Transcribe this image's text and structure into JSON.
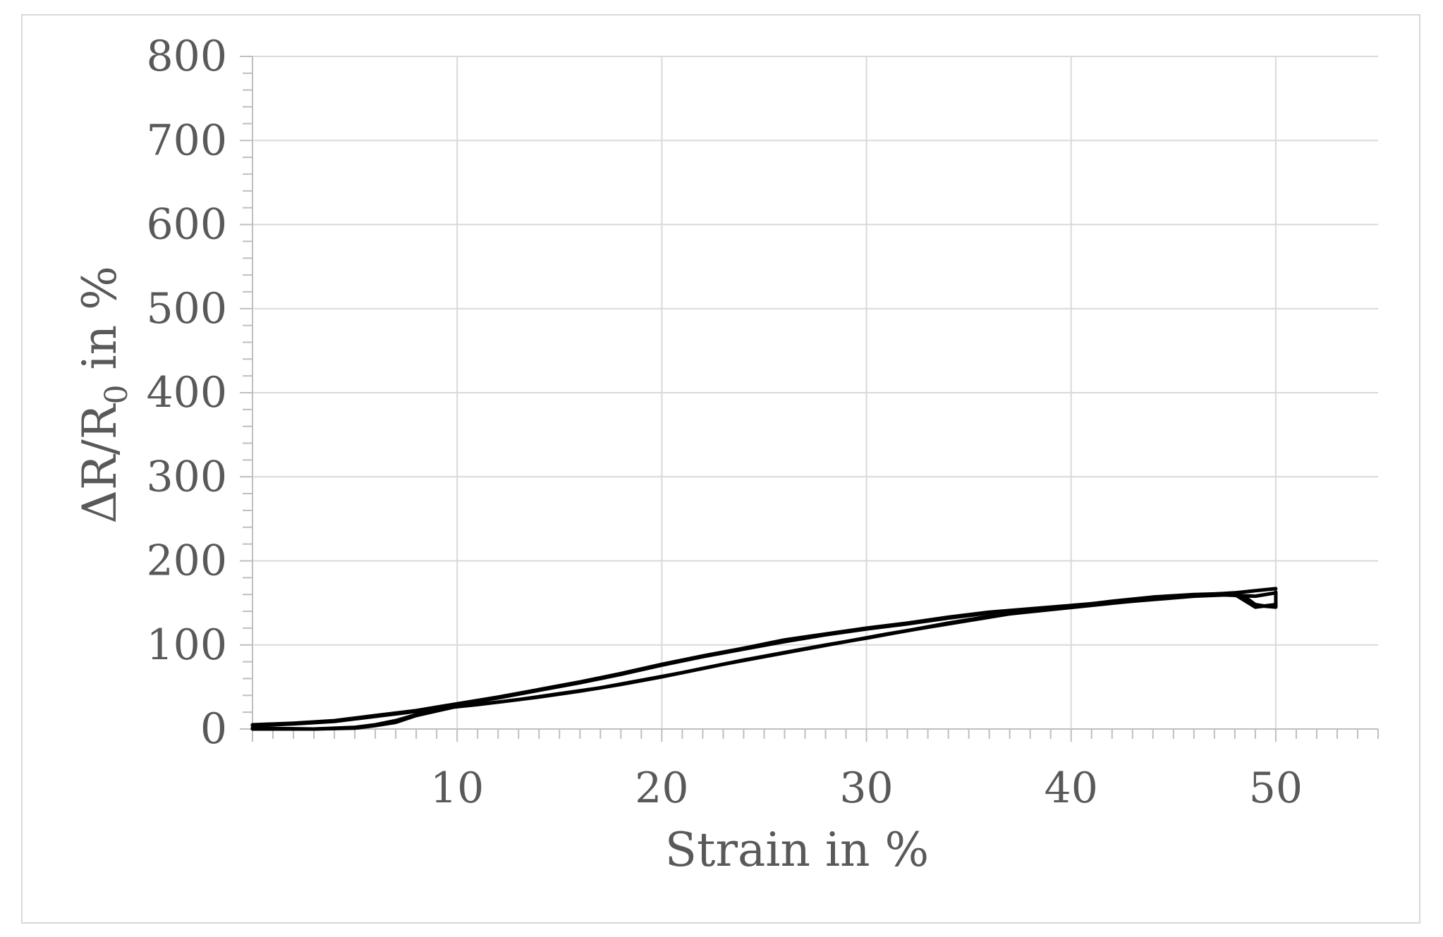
{
  "chart_data": {
    "type": "line",
    "title": "",
    "xlabel": "Strain in %",
    "ylabel": {
      "prefix": "ΔR/R",
      "subscript": "0",
      "suffix": " in %"
    },
    "xlim": [
      0,
      55
    ],
    "ylim": [
      0,
      800
    ],
    "x_ticks": [
      10,
      20,
      30,
      40,
      50
    ],
    "y_ticks": [
      0,
      100,
      200,
      300,
      400,
      500,
      600,
      700,
      800
    ],
    "x_minor_step": 1,
    "y_minor_step": 20,
    "grid": true,
    "legend": "none",
    "line_color": "#000000",
    "series": [
      {
        "values": [
          [
            0,
            5
          ],
          [
            2,
            7
          ],
          [
            4,
            10
          ],
          [
            5,
            13
          ],
          [
            6,
            16
          ],
          [
            8,
            22
          ],
          [
            10,
            30
          ],
          [
            12,
            38
          ],
          [
            14,
            47
          ],
          [
            16,
            56
          ],
          [
            18,
            66
          ],
          [
            20,
            77
          ],
          [
            22,
            87
          ],
          [
            24,
            96
          ],
          [
            26,
            106
          ],
          [
            28,
            113
          ],
          [
            30,
            120
          ],
          [
            32,
            126
          ],
          [
            34,
            133
          ],
          [
            36,
            139
          ],
          [
            38,
            143
          ],
          [
            40,
            147
          ],
          [
            42,
            151
          ],
          [
            44,
            156
          ],
          [
            46,
            159
          ],
          [
            48,
            162
          ],
          [
            50,
            167
          ]
        ]
      },
      {
        "values": [
          [
            50,
            162
          ],
          [
            49,
            158
          ],
          [
            47,
            160
          ],
          [
            45,
            157
          ],
          [
            43,
            152
          ],
          [
            41,
            147
          ],
          [
            39,
            142
          ],
          [
            37,
            137
          ],
          [
            35,
            129
          ],
          [
            33,
            121
          ],
          [
            31,
            113
          ],
          [
            29,
            104
          ],
          [
            27,
            95
          ],
          [
            25,
            86
          ],
          [
            23,
            77
          ],
          [
            21,
            67
          ],
          [
            19,
            58
          ],
          [
            17,
            49
          ],
          [
            15,
            42
          ],
          [
            13,
            35
          ],
          [
            11,
            29
          ],
          [
            9,
            24
          ],
          [
            7,
            10
          ],
          [
            6,
            5
          ],
          [
            5,
            2
          ],
          [
            3,
            0
          ],
          [
            0,
            0
          ]
        ]
      },
      {
        "values": [
          [
            0,
            4
          ],
          [
            2,
            6
          ],
          [
            4,
            9
          ],
          [
            5,
            12
          ],
          [
            6,
            15
          ],
          [
            8,
            21
          ],
          [
            10,
            29
          ],
          [
            12,
            37
          ],
          [
            14,
            46
          ],
          [
            16,
            55
          ],
          [
            18,
            65
          ],
          [
            20,
            76
          ],
          [
            22,
            86
          ],
          [
            24,
            95
          ],
          [
            26,
            104
          ],
          [
            28,
            112
          ],
          [
            30,
            119
          ],
          [
            32,
            125
          ],
          [
            34,
            132
          ],
          [
            36,
            138
          ],
          [
            38,
            142
          ],
          [
            40,
            146
          ],
          [
            42,
            152
          ],
          [
            44,
            157
          ],
          [
            46,
            160
          ],
          [
            47.5,
            161
          ],
          [
            48.5,
            157
          ],
          [
            49,
            148
          ],
          [
            49.5,
            146
          ],
          [
            50,
            145
          ],
          [
            50,
            163
          ]
        ]
      },
      {
        "values": [
          [
            50,
            148
          ],
          [
            49,
            145
          ],
          [
            48,
            160
          ],
          [
            46,
            158
          ],
          [
            44,
            154
          ],
          [
            42,
            150
          ],
          [
            40,
            145
          ],
          [
            38,
            140
          ],
          [
            36,
            134
          ],
          [
            34,
            126
          ],
          [
            32,
            117
          ],
          [
            30,
            108
          ],
          [
            28,
            100
          ],
          [
            26,
            91
          ],
          [
            24,
            82
          ],
          [
            22,
            72
          ],
          [
            20,
            62
          ],
          [
            18,
            53
          ],
          [
            16,
            45
          ],
          [
            14,
            38
          ],
          [
            12,
            32
          ],
          [
            10,
            27
          ],
          [
            8,
            16
          ],
          [
            7,
            8
          ],
          [
            6,
            4
          ],
          [
            5,
            1
          ],
          [
            3,
            0
          ],
          [
            0,
            1
          ]
        ]
      }
    ]
  }
}
